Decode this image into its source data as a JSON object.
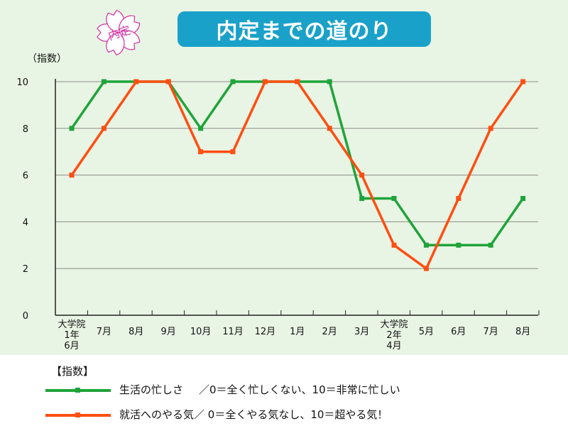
{
  "title": "内定までの道のり",
  "stamp_text": "内定",
  "y_unit": "（指数）",
  "legend_heading": "【指数】",
  "colors": {
    "panel_bg": "#e9f5e4",
    "title_bg": "#1aa1c9",
    "busy": "#1fa43a",
    "motivation": "#ff4e12",
    "stamp": "#d63aa8"
  },
  "chart_data": {
    "type": "line",
    "categories": [
      [
        "大学院",
        "1年",
        "6月"
      ],
      [
        "7月"
      ],
      [
        "8月"
      ],
      [
        "9月"
      ],
      [
        "10月"
      ],
      [
        "11月"
      ],
      [
        "12月"
      ],
      [
        "1月"
      ],
      [
        "2月"
      ],
      [
        "3月"
      ],
      [
        "大学院",
        "2年",
        "4月"
      ],
      [
        "5月"
      ],
      [
        "6月"
      ],
      [
        "7月"
      ],
      [
        "8月"
      ]
    ],
    "ylim": [
      0,
      10
    ],
    "yticks": [
      0,
      2,
      4,
      6,
      8,
      10
    ],
    "grid": true,
    "series": [
      {
        "key": "busy",
        "name": "生活の忙しさ",
        "description": "／0＝全く忙しくない、10＝非常に忙しい",
        "color": "#1fa43a",
        "values": [
          8,
          10,
          10,
          10,
          8,
          10,
          10,
          10,
          10,
          5,
          5,
          3,
          3,
          3,
          5
        ]
      },
      {
        "key": "motivation",
        "name": "就活へのやる気",
        "description": "／ 0＝全くやる気なし、10＝超やる気！",
        "color": "#ff4e12",
        "values": [
          6,
          8,
          10,
          10,
          7,
          7,
          10,
          10,
          8,
          6,
          3,
          2,
          5,
          8,
          10
        ]
      }
    ]
  }
}
